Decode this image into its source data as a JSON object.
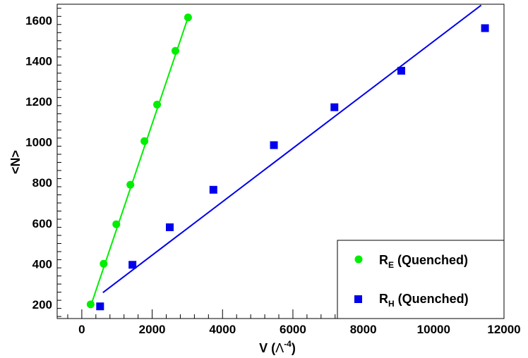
{
  "chart_data": {
    "type": "scatter",
    "xlabel": {
      "main": "V (",
      "symbol": "Λ",
      "exponent": "-4",
      "close": ")"
    },
    "ylabel": "<N>",
    "xlim": [
      -700,
      12000
    ],
    "ylim": [
      130,
      1680
    ],
    "x_ticks": [
      0,
      2000,
      4000,
      6000,
      8000,
      10000,
      12000
    ],
    "y_ticks": [
      200,
      400,
      600,
      800,
      1000,
      1200,
      1400,
      1600
    ],
    "grid": false,
    "legend": {
      "placement": "bottom-right"
    },
    "series": [
      {
        "name": "R_E (Quenched)",
        "legend_base": "R",
        "legend_sub": "E",
        "legend_rest": " (Quenched)",
        "color": "#00ee00",
        "marker": "circle",
        "points": [
          [
            250,
            200
          ],
          [
            620,
            400
          ],
          [
            980,
            595
          ],
          [
            1380,
            790
          ],
          [
            1780,
            1005
          ],
          [
            2140,
            1185
          ],
          [
            2660,
            1450
          ],
          [
            3020,
            1615
          ]
        ],
        "fit": {
          "x": [
            250,
            3020
          ],
          "y": [
            190,
            1615
          ]
        }
      },
      {
        "name": "R_H (Quenched)",
        "legend_base": "R",
        "legend_sub": "H",
        "legend_rest": " (Quenched)",
        "color": "#0000ee",
        "marker": "square",
        "points": [
          [
            520,
            190
          ],
          [
            1440,
            395
          ],
          [
            2500,
            580
          ],
          [
            3740,
            765
          ],
          [
            5460,
            985
          ],
          [
            7180,
            1172
          ],
          [
            9080,
            1352
          ],
          [
            11460,
            1562
          ]
        ],
        "fit": {
          "x": [
            600,
            11350
          ],
          "y": [
            258,
            1675
          ]
        }
      }
    ]
  }
}
